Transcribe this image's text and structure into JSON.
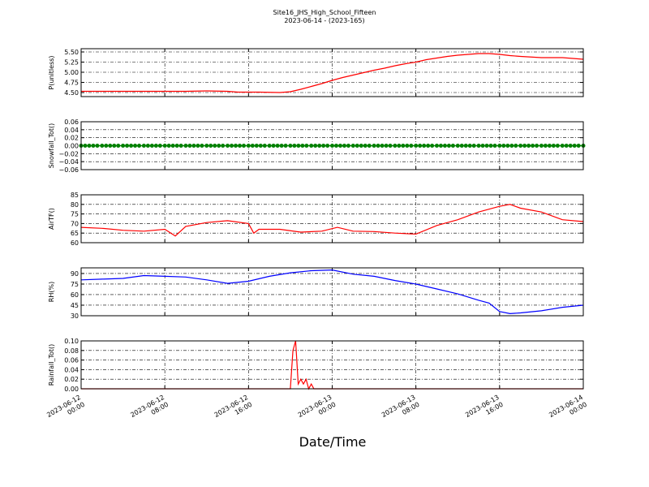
{
  "title": "Site16_JHS_High_School_Fifteen",
  "subtitle": "2023-06-14 - (2023-165)",
  "xlabel": "Date/Time",
  "chart_data": [
    {
      "type": "line",
      "ylabel": "P(unitless)",
      "color": "#ff0000",
      "grid": true,
      "xlim": [
        "2023-06-12 00:00",
        "2023-06-14 00:00"
      ],
      "xticks": [
        "2023-06-12 00:00",
        "2023-06-12 08:00",
        "2023-06-12 16:00",
        "2023-06-13 00:00",
        "2023-06-13 08:00",
        "2023-06-13 16:00",
        "2023-06-14 00:00"
      ],
      "ylim": [
        4.4,
        5.58
      ],
      "yticks": [
        {
          "value": 4.5,
          "label": "4.50"
        },
        {
          "value": 4.75,
          "label": "4.75"
        },
        {
          "value": 5.0,
          "label": "5.00"
        },
        {
          "value": 5.25,
          "label": "5.25"
        },
        {
          "value": 5.5,
          "label": "5.50"
        }
      ],
      "x": [
        "2023-06-12 00:00",
        "2023-06-12 02:00",
        "2023-06-12 04:00",
        "2023-06-12 06:00",
        "2023-06-12 08:00",
        "2023-06-12 10:00",
        "2023-06-12 12:00",
        "2023-06-12 14:00",
        "2023-06-12 15:00",
        "2023-06-12 17:00",
        "2023-06-12 19:00",
        "2023-06-12 20:00",
        "2023-06-12 21:00",
        "2023-06-12 22:00",
        "2023-06-12 23:00",
        "2023-06-13 00:00",
        "2023-06-13 01:00",
        "2023-06-13 02:00",
        "2023-06-13 03:00",
        "2023-06-13 04:00",
        "2023-06-13 05:00",
        "2023-06-13 06:00",
        "2023-06-13 07:00",
        "2023-06-13 08:00",
        "2023-06-13 09:00",
        "2023-06-13 10:00",
        "2023-06-13 11:00",
        "2023-06-13 12:00",
        "2023-06-13 13:00",
        "2023-06-13 14:00",
        "2023-06-13 15:00",
        "2023-06-13 16:00",
        "2023-06-13 17:00",
        "2023-06-13 18:00",
        "2023-06-13 20:00",
        "2023-06-13 22:00",
        "2023-06-14 00:00"
      ],
      "values": [
        4.53,
        4.53,
        4.53,
        4.53,
        4.53,
        4.53,
        4.54,
        4.53,
        4.51,
        4.51,
        4.5,
        4.52,
        4.58,
        4.65,
        4.72,
        4.8,
        4.87,
        4.93,
        4.99,
        5.05,
        5.1,
        5.16,
        5.21,
        5.25,
        5.31,
        5.35,
        5.39,
        5.42,
        5.44,
        5.46,
        5.46,
        5.44,
        5.41,
        5.39,
        5.36,
        5.36,
        5.32
      ]
    },
    {
      "type": "line",
      "ylabel": "Snowfall_Tot()",
      "color": "#008000",
      "marker": true,
      "grid": true,
      "xlim": [
        "2023-06-12 00:00",
        "2023-06-14 00:00"
      ],
      "xticks": [
        "2023-06-12 00:00",
        "2023-06-12 08:00",
        "2023-06-12 16:00",
        "2023-06-13 00:00",
        "2023-06-13 08:00",
        "2023-06-13 16:00",
        "2023-06-14 00:00"
      ],
      "ylim": [
        -0.06,
        0.06
      ],
      "yticks": [
        {
          "value": -0.06,
          "label": "−0.06"
        },
        {
          "value": -0.04,
          "label": "−0.04"
        },
        {
          "value": -0.02,
          "label": "−0.02"
        },
        {
          "value": 0,
          "label": "0.00"
        },
        {
          "value": 0.02,
          "label": "0.02"
        },
        {
          "value": 0.04,
          "label": "0.04"
        },
        {
          "value": 0.06,
          "label": "0.06"
        }
      ],
      "x": [
        "2023-06-12 00:00",
        "2023-06-12 02:00",
        "2023-06-12 04:00",
        "2023-06-12 06:00",
        "2023-06-12 08:00",
        "2023-06-12 10:00",
        "2023-06-12 12:00",
        "2023-06-12 14:00",
        "2023-06-12 16:00",
        "2023-06-12 18:00",
        "2023-06-12 20:00",
        "2023-06-12 22:00",
        "2023-06-13 00:00",
        "2023-06-13 02:00",
        "2023-06-13 04:00",
        "2023-06-13 06:00",
        "2023-06-13 08:00",
        "2023-06-13 10:00",
        "2023-06-13 12:00",
        "2023-06-13 14:00",
        "2023-06-13 16:00",
        "2023-06-13 18:00",
        "2023-06-13 20:00",
        "2023-06-13 22:00",
        "2023-06-14 00:00"
      ],
      "values": [
        0,
        0,
        0,
        0,
        0,
        0,
        0,
        0,
        0,
        0,
        0,
        0,
        0,
        0,
        0,
        0,
        0,
        0,
        0,
        0,
        0,
        0,
        0,
        0,
        0
      ]
    },
    {
      "type": "line",
      "ylabel": "AirTF()",
      "color": "#ff0000",
      "grid": true,
      "xlim": [
        "2023-06-12 00:00",
        "2023-06-14 00:00"
      ],
      "xticks": [
        "2023-06-12 00:00",
        "2023-06-12 08:00",
        "2023-06-12 16:00",
        "2023-06-13 00:00",
        "2023-06-13 08:00",
        "2023-06-13 16:00",
        "2023-06-14 00:00"
      ],
      "ylim": [
        60,
        85
      ],
      "yticks": [
        60,
        65,
        70,
        75,
        80,
        85
      ],
      "x": [
        "2023-06-12 00:00",
        "2023-06-12 02:00",
        "2023-06-12 04:00",
        "2023-06-12 06:00",
        "2023-06-12 08:00",
        "2023-06-12 09:00",
        "2023-06-12 10:00",
        "2023-06-12 12:00",
        "2023-06-12 14:00",
        "2023-06-12 16:00",
        "2023-06-12 16:30",
        "2023-06-12 17:00",
        "2023-06-12 19:00",
        "2023-06-12 21:00",
        "2023-06-12 23:00",
        "2023-06-13 00:30",
        "2023-06-13 02:00",
        "2023-06-13 04:00",
        "2023-06-13 06:00",
        "2023-06-13 08:00",
        "2023-06-13 10:00",
        "2023-06-13 12:00",
        "2023-06-13 14:00",
        "2023-06-13 16:00",
        "2023-06-13 17:00",
        "2023-06-13 18:00",
        "2023-06-13 20:00",
        "2023-06-13 22:00",
        "2023-06-14 00:00"
      ],
      "values": [
        68,
        67.5,
        66.5,
        66,
        67,
        63.5,
        68.5,
        70.5,
        71.5,
        70,
        65,
        67,
        67,
        65.5,
        66,
        68,
        66,
        65.8,
        65,
        64.5,
        69,
        72,
        76,
        79,
        80,
        78,
        76,
        72,
        71
      ]
    },
    {
      "type": "line",
      "ylabel": "RH(%)",
      "color": "#0000ff",
      "grid": true,
      "xlim": [
        "2023-06-12 00:00",
        "2023-06-14 00:00"
      ],
      "xticks": [
        "2023-06-12 00:00",
        "2023-06-12 08:00",
        "2023-06-12 16:00",
        "2023-06-13 00:00",
        "2023-06-13 08:00",
        "2023-06-13 16:00",
        "2023-06-14 00:00"
      ],
      "ylim": [
        30,
        98
      ],
      "yticks": [
        30,
        45,
        60,
        75,
        90
      ],
      "x": [
        "2023-06-12 00:00",
        "2023-06-12 02:00",
        "2023-06-12 04:00",
        "2023-06-12 06:00",
        "2023-06-12 08:00",
        "2023-06-12 10:00",
        "2023-06-12 12:00",
        "2023-06-12 14:00",
        "2023-06-12 16:00",
        "2023-06-12 18:00",
        "2023-06-12 20:00",
        "2023-06-12 22:00",
        "2023-06-13 00:00",
        "2023-06-13 02:00",
        "2023-06-13 04:00",
        "2023-06-13 06:00",
        "2023-06-13 08:00",
        "2023-06-13 10:00",
        "2023-06-13 12:00",
        "2023-06-13 14:00",
        "2023-06-13 15:00",
        "2023-06-13 16:00",
        "2023-06-13 17:00",
        "2023-06-13 18:00",
        "2023-06-13 20:00",
        "2023-06-13 22:00",
        "2023-06-14 00:00"
      ],
      "values": [
        81,
        82,
        83,
        87,
        86,
        85,
        81,
        76,
        79,
        86,
        91,
        94,
        95,
        89,
        86,
        80,
        75,
        68,
        61,
        52,
        48,
        36,
        33,
        34,
        37,
        42,
        45
      ]
    },
    {
      "type": "line",
      "ylabel": "Rainfall_Tot()",
      "color": "#ff0000",
      "grid": true,
      "xlim": [
        "2023-06-12 00:00",
        "2023-06-14 00:00"
      ],
      "xticks": [
        "2023-06-12 00:00",
        "2023-06-12 08:00",
        "2023-06-12 16:00",
        "2023-06-13 00:00",
        "2023-06-13 08:00",
        "2023-06-13 16:00",
        "2023-06-14 00:00"
      ],
      "ylim": [
        0,
        0.1
      ],
      "yticks": [
        {
          "value": 0,
          "label": "0.00"
        },
        {
          "value": 0.02,
          "label": "0.02"
        },
        {
          "value": 0.04,
          "label": "0.04"
        },
        {
          "value": 0.06,
          "label": "0.06"
        },
        {
          "value": 0.08,
          "label": "0.08"
        },
        {
          "value": 0.1,
          "label": "0.10"
        }
      ],
      "x": [
        "2023-06-12 00:00",
        "2023-06-12 20:00",
        "2023-06-12 20:15",
        "2023-06-12 20:30",
        "2023-06-12 20:45",
        "2023-06-12 21:00",
        "2023-06-12 21:15",
        "2023-06-12 21:30",
        "2023-06-12 21:45",
        "2023-06-12 22:00",
        "2023-06-12 22:15",
        "2023-06-14 00:00"
      ],
      "values": [
        0,
        0,
        0.08,
        0.1,
        0.01,
        0.02,
        0.01,
        0.02,
        0,
        0.01,
        0,
        0
      ]
    }
  ]
}
